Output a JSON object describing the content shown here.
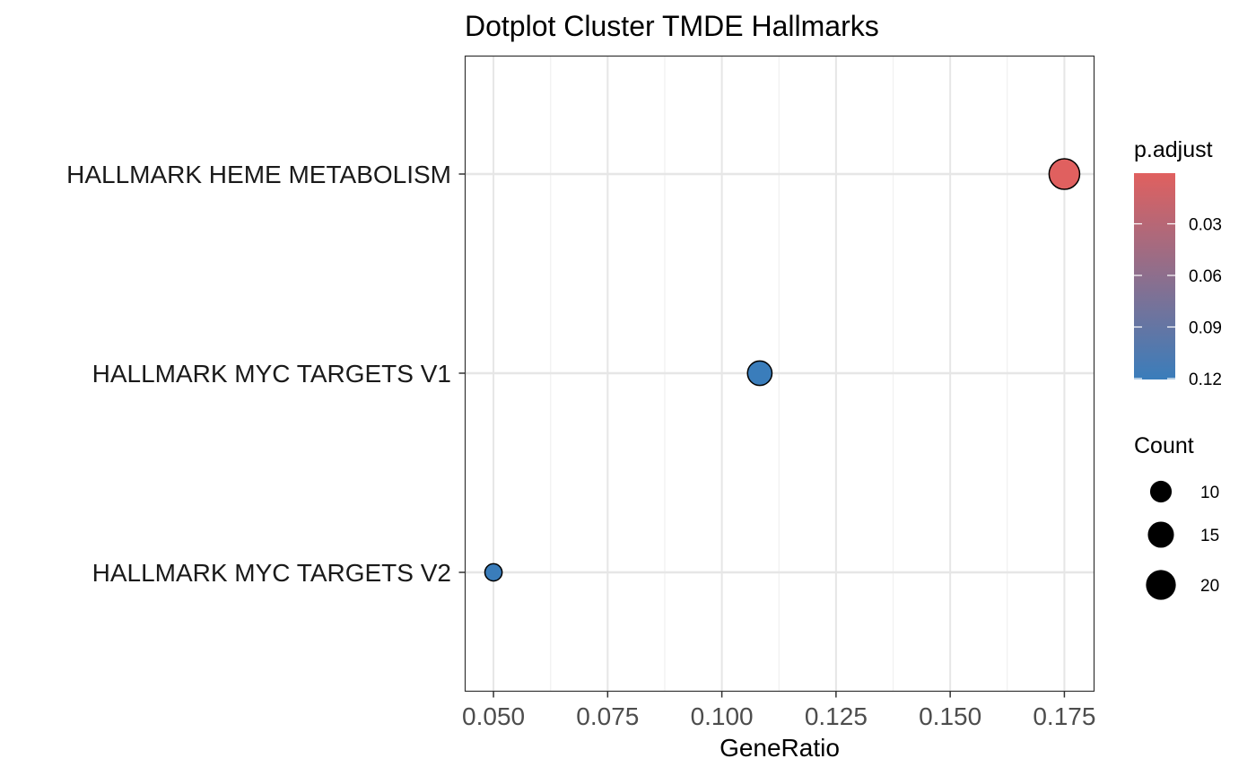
{
  "chart_data": {
    "type": "scatter",
    "title": "Dotplot Cluster TMDE Hallmarks",
    "xlabel": "GeneRatio",
    "ylabel": "",
    "xlim": [
      0.0438,
      0.1815
    ],
    "xticks": [
      0.05,
      0.075,
      0.1,
      0.125,
      0.15,
      0.175
    ],
    "xtick_labels": [
      "0.050",
      "0.075",
      "0.100",
      "0.125",
      "0.150",
      "0.175"
    ],
    "categories": [
      "HALLMARK HEME METABOLISM",
      "HALLMARK MYC TARGETS V1",
      "HALLMARK MYC TARGETS V2"
    ],
    "grid": true,
    "points": [
      {
        "category": "HALLMARK HEME METABOLISM",
        "x": 0.175,
        "count": 21,
        "p_adjust": 0.0
      },
      {
        "category": "HALLMARK MYC TARGETS V1",
        "x": 0.1083,
        "count": 13,
        "p_adjust": 0.12
      },
      {
        "category": "HALLMARK MYC TARGETS V2",
        "x": 0.05,
        "count": 6,
        "p_adjust": 0.12
      }
    ],
    "color_legend": {
      "title": "p.adjust",
      "ticks": [
        0.03,
        0.06,
        0.09,
        0.12
      ],
      "tick_labels": [
        "0.03",
        "0.06",
        "0.09",
        "0.12"
      ],
      "range": [
        0.0,
        0.12
      ],
      "low_color": "#e0605f",
      "high_color": "#3a7dbb"
    },
    "size_legend": {
      "title": "Count",
      "values": [
        10,
        15,
        20
      ],
      "labels": [
        "10",
        "15",
        "20"
      ]
    },
    "legend_position": "right"
  }
}
